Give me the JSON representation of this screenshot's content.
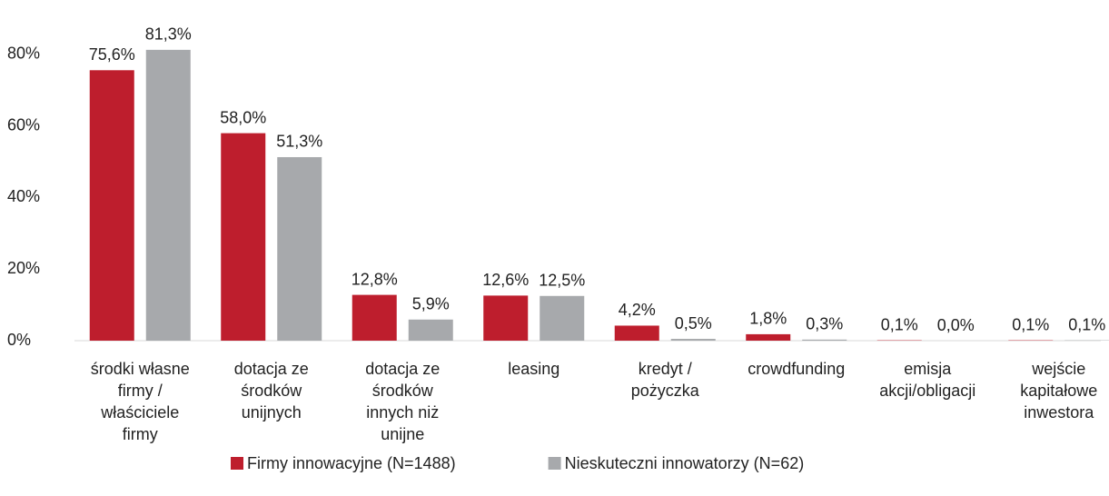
{
  "chart_data": {
    "type": "bar",
    "categories": [
      [
        "środki własne",
        "firmy /",
        "właściciele",
        "firmy"
      ],
      [
        "dotacja ze",
        "środków",
        "unijnych"
      ],
      [
        "dotacja ze",
        "środków",
        "innych niż",
        "unijne"
      ],
      [
        "leasing"
      ],
      [
        "kredyt /",
        "pożyczka"
      ],
      [
        "crowdfunding"
      ],
      [
        "emisja",
        "akcji/obligacji"
      ],
      [
        "wejście",
        "kapitałowe",
        "inwestora"
      ]
    ],
    "series": [
      {
        "name": "Firmy innowacyjne (N=1488)",
        "color": "#be1e2d",
        "values": [
          75.6,
          58.0,
          12.8,
          12.6,
          4.2,
          1.8,
          0.1,
          0.1
        ],
        "value_labels": [
          "75,6%",
          "58,0%",
          "12,8%",
          "12,6%",
          "4,2%",
          "1,8%",
          "0,1%",
          "0,1%"
        ]
      },
      {
        "name": "Nieskuteczni innowatorzy (N=62)",
        "color": "#a7a9ac",
        "values": [
          81.3,
          51.3,
          5.9,
          12.5,
          0.5,
          0.3,
          0.0,
          0.1
        ],
        "value_labels": [
          "81,3%",
          "51,3%",
          "5,9%",
          "12,5%",
          "0,5%",
          "0,3%",
          "0,0%",
          "0,1%"
        ]
      }
    ],
    "ylim": [
      0,
      90
    ],
    "yticks": [
      {
        "value": 0,
        "label": "0%"
      },
      {
        "value": 20,
        "label": "20%"
      },
      {
        "value": 40,
        "label": "40%"
      },
      {
        "value": 60,
        "label": "60%"
      },
      {
        "value": 80,
        "label": "80%"
      }
    ],
    "grid": false,
    "legend": "bottom"
  }
}
